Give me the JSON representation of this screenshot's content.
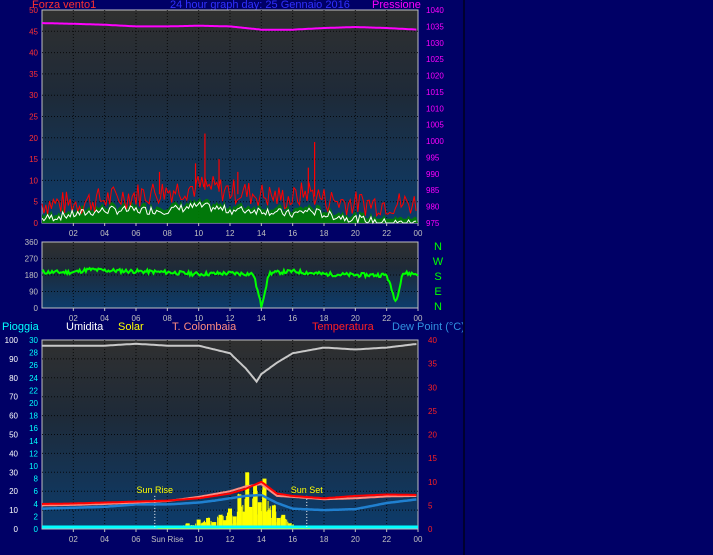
{
  "header": {
    "left_label": "Forza vento1",
    "title": "24 hour graph day:  25 Gennaio 2016",
    "right_label": "Pressione"
  },
  "lower_header": {
    "pioggia": "Pioggia",
    "umidita": "Umidita",
    "solar": "Solar",
    "tcolombaia": "T. Colombaia",
    "temperatura": "Temperatura",
    "dewpoint": "Dew Point (°C)"
  },
  "colors": {
    "wind": "#ff0000",
    "gust": "#ffffff",
    "wind_fill": "#008000",
    "pressure": "#ff00ff",
    "direction": "#00ff00",
    "humidity": "#c8c8c8",
    "solar": "#ffff00",
    "temperature": "#ff0000",
    "tcolombaia": "#ff8c80",
    "dewpoint": "#2080d0",
    "rain": "#00ffff"
  },
  "chart_data": [
    {
      "type": "line",
      "name": "wind-pressure",
      "x_ticks": [
        "02",
        "04",
        "06",
        "08",
        "10",
        "12",
        "14",
        "16",
        "18",
        "20",
        "22",
        "00"
      ],
      "left_axis": {
        "label": "Forza vento1",
        "ylim": [
          0,
          50
        ],
        "ticks": [
          0,
          5,
          10,
          15,
          20,
          25,
          30,
          35,
          40,
          45,
          50
        ]
      },
      "right_axis": {
        "label": "Pressione",
        "ylim": [
          975,
          1040
        ],
        "ticks": [
          975,
          980,
          985,
          990,
          995,
          1000,
          1005,
          1010,
          1015,
          1020,
          1025,
          1030,
          1035,
          1040
        ]
      },
      "pressure": {
        "x": [
          0,
          2,
          4,
          6,
          8,
          10,
          12,
          13,
          14,
          16,
          18,
          20,
          22,
          24
        ],
        "y": [
          1036,
          1035.8,
          1035.5,
          1035,
          1035,
          1035.2,
          1035,
          1034.5,
          1034,
          1034,
          1034.5,
          1034.8,
          1034.5,
          1034
        ]
      },
      "wind_base": {
        "x": [
          0,
          2,
          4,
          6,
          8,
          10,
          12,
          14,
          16,
          17,
          18,
          20,
          22,
          24
        ],
        "y": [
          4,
          4,
          5,
          6,
          7,
          8,
          7,
          6,
          5,
          7,
          5,
          4,
          4,
          4
        ]
      },
      "wind_peaks": [
        {
          "x": 10.4,
          "y": 21
        },
        {
          "x": 9.8,
          "y": 14
        },
        {
          "x": 11.3,
          "y": 15
        },
        {
          "x": 12.5,
          "y": 12
        },
        {
          "x": 17.4,
          "y": 19
        },
        {
          "x": 17.0,
          "y": 13
        },
        {
          "x": 7.5,
          "y": 12
        }
      ],
      "gust_base": {
        "x": [
          0,
          2,
          4,
          6,
          8,
          10,
          12,
          14,
          16,
          17,
          18,
          20,
          22,
          24
        ],
        "y": [
          1,
          2,
          3,
          3,
          3,
          4,
          3,
          3,
          2,
          3,
          2,
          1,
          0,
          0
        ]
      }
    },
    {
      "type": "line",
      "name": "wind-direction",
      "x_ticks": [
        "02",
        "04",
        "06",
        "08",
        "10",
        "12",
        "14",
        "16",
        "18",
        "20",
        "22",
        "00"
      ],
      "ylim": [
        0,
        360
      ],
      "ticks": [
        0,
        90,
        180,
        270,
        360
      ],
      "right_labels": [
        "N",
        "W",
        "S",
        "E",
        "N"
      ],
      "direction": {
        "x": [
          0,
          2,
          3,
          4,
          6,
          8,
          10,
          12,
          13.5,
          14,
          14.5,
          16,
          18,
          20,
          22,
          22.6,
          23,
          24
        ],
        "y": [
          195,
          195,
          210,
          205,
          200,
          195,
          185,
          190,
          185,
          10,
          190,
          200,
          185,
          180,
          180,
          30,
          190,
          185
        ]
      }
    },
    {
      "type": "line",
      "name": "weather",
      "x_ticks": [
        "02",
        "04",
        "06",
        "Sun Rise",
        "10",
        "12",
        "14",
        "16",
        "18",
        "20",
        "22",
        "00"
      ],
      "left_axis": {
        "label": "Umidita",
        "ylim": [
          0,
          100
        ],
        "ticks": [
          0,
          10,
          20,
          30,
          40,
          50,
          60,
          70,
          80,
          90,
          100
        ]
      },
      "rain_axis": {
        "label": "Pioggia",
        "ylim": [
          0,
          30
        ],
        "ticks": [
          0,
          2,
          4,
          6,
          8,
          10,
          12,
          14,
          16,
          18,
          20,
          22,
          24,
          26,
          28,
          30
        ]
      },
      "right_axis": {
        "label": "Temperatura",
        "ylim": [
          0,
          40
        ],
        "ticks": [
          0,
          5,
          10,
          15,
          20,
          25,
          30,
          35,
          40
        ]
      },
      "annotations": [
        {
          "text": "Sun Rise",
          "x": 7.2
        },
        {
          "text": "Sun Set",
          "x": 16.9
        }
      ],
      "humidity": {
        "x": [
          0,
          2,
          4,
          6,
          8,
          10,
          11,
          12,
          13,
          13.7,
          14,
          15,
          16,
          18,
          20,
          22,
          24
        ],
        "y": [
          97,
          97,
          97,
          98,
          97,
          97,
          95,
          93,
          85,
          78,
          82,
          88,
          93,
          96,
          95,
          96,
          98
        ]
      },
      "temperature": {
        "x": [
          0,
          2,
          4,
          6,
          8,
          10,
          12,
          13,
          14,
          15,
          16,
          18,
          20,
          22,
          24
        ],
        "y": [
          5.3,
          5.4,
          5.6,
          5.8,
          6.0,
          6.5,
          7.5,
          8.5,
          10,
          7.5,
          7.0,
          6.5,
          7.0,
          7.3,
          7.2
        ]
      },
      "tcolombaia": {
        "x": [
          0,
          2,
          4,
          6,
          8,
          10,
          12,
          13,
          14,
          15,
          16,
          18,
          20,
          22,
          24
        ],
        "y": [
          5.0,
          5.1,
          5.3,
          5.6,
          5.9,
          6.8,
          8.0,
          9,
          9.5,
          7.0,
          6.8,
          6.3,
          6.5,
          6.9,
          7.0
        ]
      },
      "dewpoint": {
        "x": [
          0,
          2,
          4,
          6,
          8,
          10,
          11,
          12,
          13,
          14,
          15,
          16,
          18,
          20,
          22,
          24
        ],
        "y": [
          4.3,
          4.5,
          4.7,
          5.2,
          5.2,
          5.6,
          6,
          6.5,
          7.0,
          7.2,
          5.5,
          4.3,
          4.0,
          4.2,
          5.5,
          6.3
        ]
      },
      "solar": [
        [
          7.5,
          2
        ],
        [
          8.0,
          5
        ],
        [
          8.5,
          8
        ],
        [
          9.0,
          10
        ],
        [
          9.3,
          18
        ],
        [
          9.6,
          12
        ],
        [
          10.0,
          30
        ],
        [
          10.3,
          20
        ],
        [
          10.6,
          35
        ],
        [
          11.0,
          22
        ],
        [
          11.4,
          45
        ],
        [
          11.7,
          28
        ],
        [
          12.0,
          65
        ],
        [
          12.3,
          40
        ],
        [
          12.6,
          110
        ],
        [
          12.9,
          55
        ],
        [
          13.1,
          180
        ],
        [
          13.3,
          70
        ],
        [
          13.6,
          140
        ],
        [
          13.9,
          85
        ],
        [
          14.2,
          160
        ],
        [
          14.5,
          60
        ],
        [
          14.8,
          75
        ],
        [
          15.1,
          35
        ],
        [
          15.4,
          45
        ],
        [
          15.8,
          18
        ],
        [
          16.2,
          10
        ],
        [
          16.6,
          5
        ],
        [
          17.0,
          2
        ]
      ],
      "solar_scale_max": 600,
      "rain_total": 0.4
    }
  ]
}
